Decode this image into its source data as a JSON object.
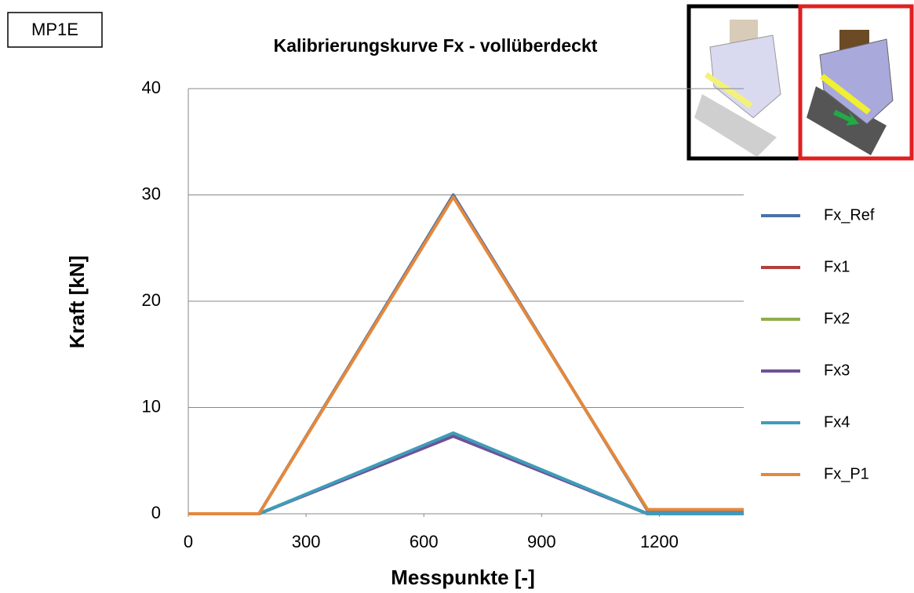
{
  "badge": "MP1E",
  "chart_data": {
    "type": "line",
    "title": "Kalibrierungskurve Fx  - vollüberdeckt",
    "x_label": "Messpunkte [-]",
    "y_label": "Kraft [kN]",
    "x": [
      0,
      180,
      675,
      1170,
      1415
    ],
    "series": [
      {
        "name": "Fx_Ref",
        "color": "#4a72a8",
        "values": [
          0,
          0,
          30,
          0.3,
          0.3
        ]
      },
      {
        "name": "Fx1",
        "color": "#b0413e",
        "values": [
          0,
          0,
          7.5,
          0,
          0
        ]
      },
      {
        "name": "Fx2",
        "color": "#8fae4a",
        "values": [
          0,
          0,
          7.5,
          0,
          0
        ]
      },
      {
        "name": "Fx3",
        "color": "#6f5196",
        "values": [
          0,
          0,
          7.3,
          0,
          0
        ]
      },
      {
        "name": "Fx4",
        "color": "#3f9cb8",
        "values": [
          0,
          0,
          7.6,
          0,
          0
        ]
      },
      {
        "name": "Fx_P1",
        "color": "#e4883c",
        "values": [
          0,
          0,
          29.8,
          0.4,
          0.4
        ]
      }
    ],
    "xlim": [
      0,
      1415
    ],
    "xticks": [
      0,
      300,
      600,
      900,
      1200
    ],
    "ylim": [
      0,
      40
    ],
    "yticks": [
      0,
      10,
      20,
      30,
      40
    ],
    "grid": true,
    "legend": "right"
  }
}
